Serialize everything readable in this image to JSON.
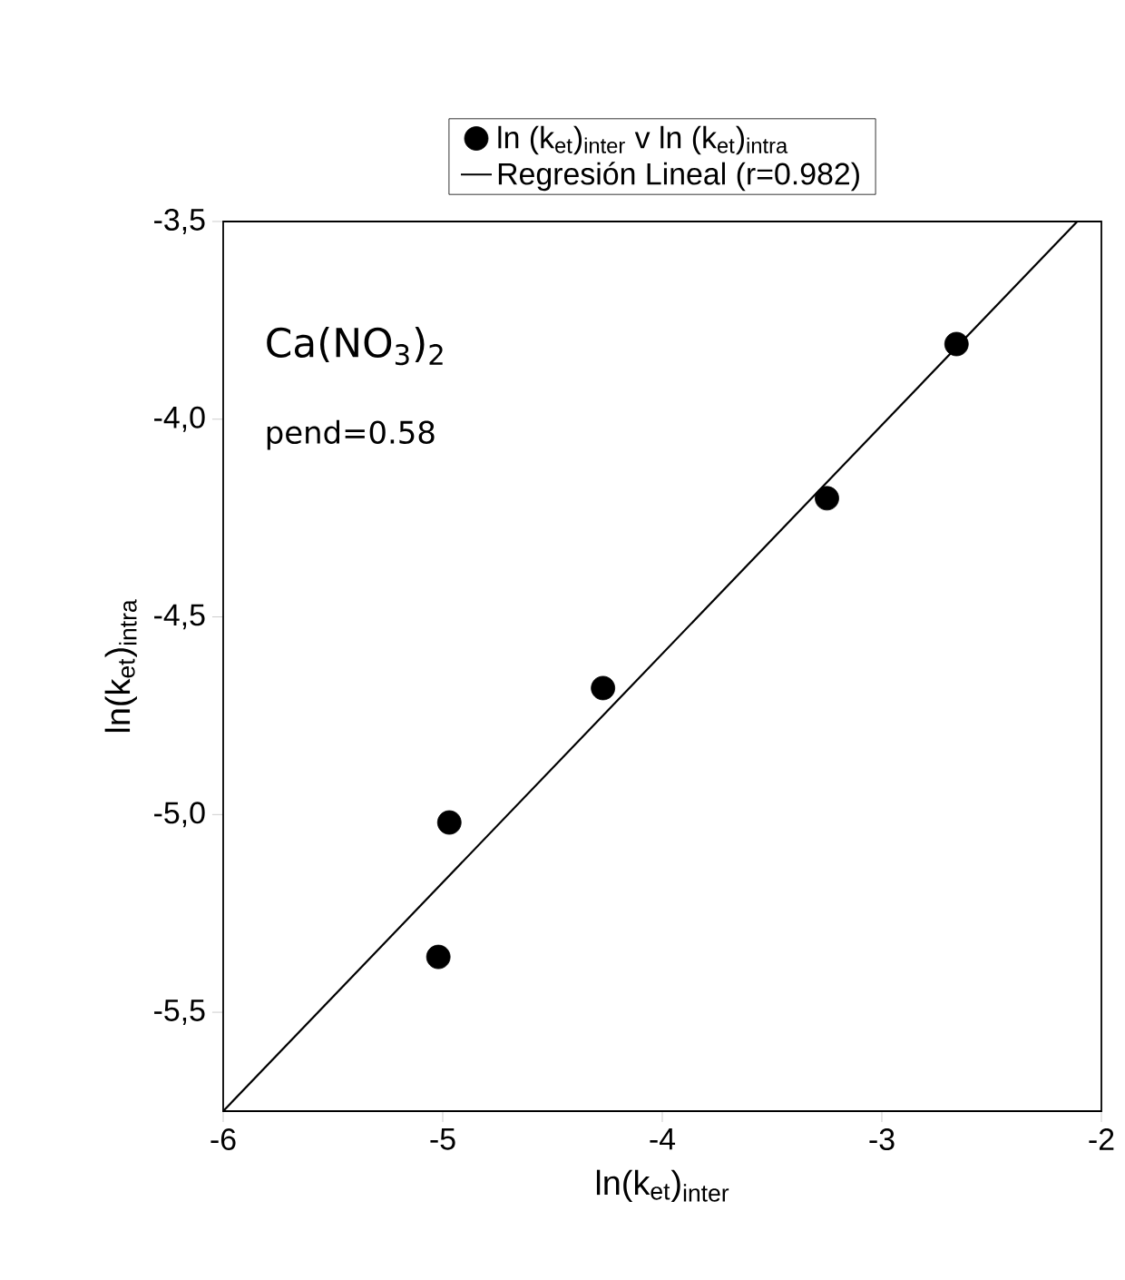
{
  "chart_data": {
    "type": "scatter",
    "xlabel": "ln(k$_{et}$)$_{inter}$",
    "ylabel": "ln(k$_{et}$)$_{intra}$",
    "x": [
      -5.02,
      -4.97,
      -4.27,
      -3.25,
      -2.66
    ],
    "series": [
      {
        "name": "ln (k$_{et}$)$_{inter}$ v ln (k$_{et}$)$_{intra}$",
        "color": "#000000",
        "marker": "circle",
        "values": [
          -5.36,
          -5.02,
          -4.68,
          -4.2,
          -3.81
        ]
      },
      {
        "name": "Regresión Lineal (r=0.982)",
        "type": "line",
        "marker": "none",
        "color": "#000000",
        "x": [
          -6,
          -2.11
        ],
        "values": [
          -5.75,
          -3.5
        ]
      }
    ],
    "annotations": [
      "Ca(NO$_{3}$)$_{2}$",
      "pend=0.58"
    ],
    "xlim": [
      -6,
      -2
    ],
    "ylim": [
      -5.75,
      -3.5
    ],
    "xticks": [
      -6,
      -5,
      -4,
      -3,
      -2
    ],
    "yticks": [
      {
        "value": -5.5,
        "label": "-5,5"
      },
      {
        "value": -5.0,
        "label": "-5,0"
      },
      {
        "value": -4.5,
        "label": "-4,5"
      },
      {
        "value": -4.0,
        "label": "-4,0"
      },
      {
        "value": -3.5,
        "label": "-3,5"
      }
    ],
    "grid": false,
    "legend": "top"
  }
}
